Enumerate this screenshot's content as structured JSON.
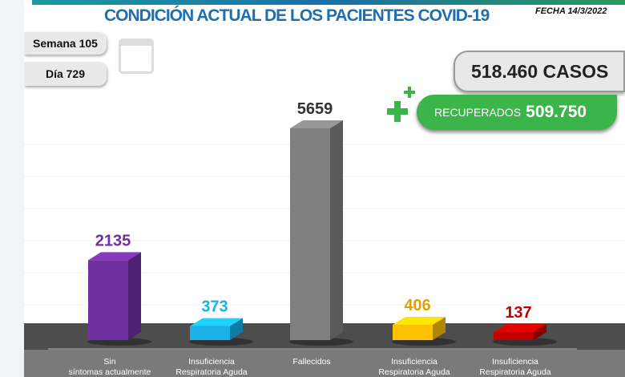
{
  "header": {
    "title": "CONDICIÓN ACTUAL DE LOS PACIENTES COVID-19",
    "date": "FECHA 14/3/2022"
  },
  "badges": {
    "week": "Semana 105",
    "day": "Día 729",
    "cases": "518.460 CASOS",
    "recovered_label": "RECUPERADOS",
    "recovered_value": "509.750"
  },
  "icons": [
    "calendar-icon",
    "plus-icon"
  ],
  "chart_data": {
    "type": "bar",
    "categories": [
      "Sin síntomas actualmente",
      "Insuficiencia Respiratoria Aguda",
      "Fallecidos",
      "Insuficiencia Respiratoria Aguda",
      "Insuficiencia Respiratoria Aguda"
    ],
    "values": [
      2135,
      373,
      5659,
      406,
      137
    ],
    "labels": [
      "2135",
      "373",
      "5659",
      "406",
      "137"
    ],
    "colors": [
      "#7030a0",
      "#1ab0e8",
      "#7f7f7f",
      "#ffc000",
      "#c00000"
    ],
    "label_colors": [
      "#7030a0",
      "#1ab0e8",
      "#333333",
      "#e0a000",
      "#c00000"
    ]
  }
}
